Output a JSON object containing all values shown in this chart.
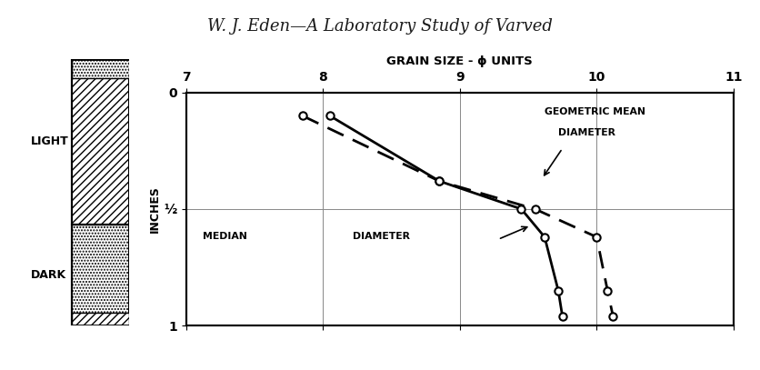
{
  "title": "W. J. Eden—A Laboratory Study of Varved",
  "xlabel": "GRAIN SIZE - ϕ UNITS",
  "ylabel": "INCHES",
  "xlim": [
    7,
    11
  ],
  "ylim": [
    0,
    1
  ],
  "xticks": [
    7,
    8,
    9,
    10,
    11
  ],
  "ytick_labels": [
    "0",
    "½",
    "1"
  ],
  "ytick_vals": [
    0,
    0.5,
    1
  ],
  "median_x": [
    8.05,
    8.85,
    9.45,
    9.62,
    9.72,
    9.75
  ],
  "median_y": [
    0.1,
    0.38,
    0.5,
    0.62,
    0.85,
    0.96
  ],
  "geomean_x": [
    7.85,
    8.85,
    9.55,
    10.0,
    10.08,
    10.12
  ],
  "geomean_y": [
    0.1,
    0.38,
    0.5,
    0.62,
    0.85,
    0.96
  ],
  "background_color": "#ffffff",
  "line_color": "#000000",
  "grid_color": "#888888"
}
